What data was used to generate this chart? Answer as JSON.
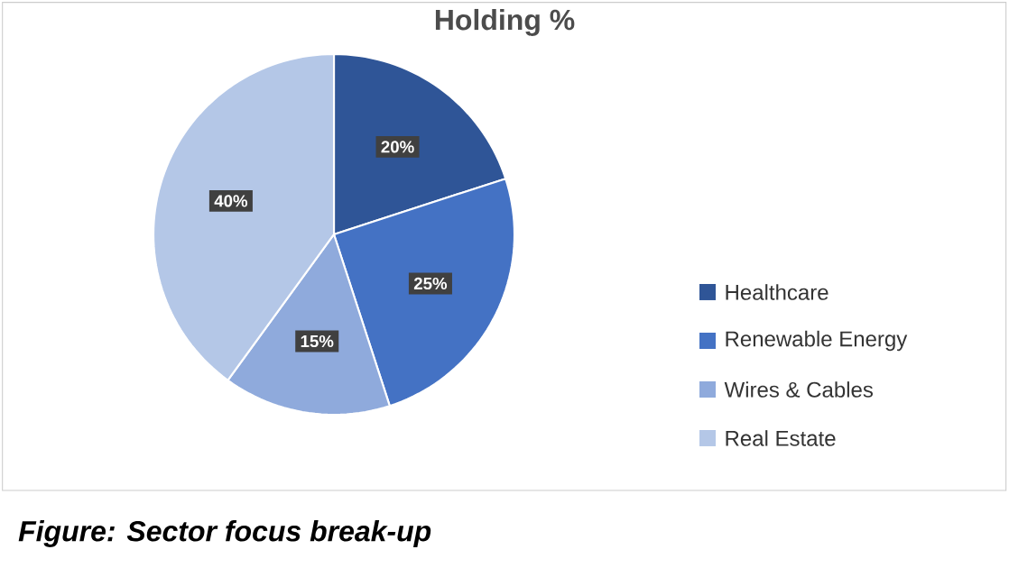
{
  "chart_data": {
    "type": "pie",
    "title": "Holding %",
    "categories": [
      "Healthcare",
      "Renewable Energy",
      "Wires & Cables",
      "Real Estate"
    ],
    "values": [
      20,
      25,
      15,
      40
    ],
    "colors": [
      "#2f5597",
      "#4472c4",
      "#8faadc",
      "#b4c7e7"
    ],
    "value_labels": [
      "20%",
      "25%",
      "15%",
      "40%"
    ],
    "legend": "right",
    "annotations": [
      "Figure: Sector focus break-up"
    ]
  }
}
